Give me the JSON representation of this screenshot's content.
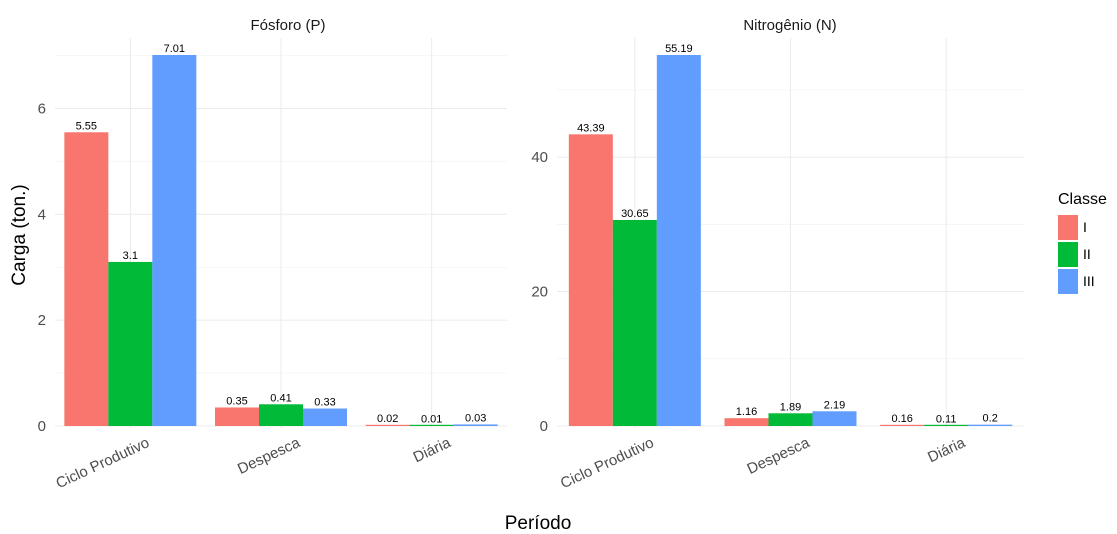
{
  "chart_data": {
    "type": "bar",
    "xlabel": "Período",
    "ylabel": "Carga (ton.)",
    "legend": {
      "title": "Classe",
      "position": "right"
    },
    "categories": [
      "Ciclo Produtivo",
      "Despesca",
      "Diária"
    ],
    "colors": {
      "I": "#F8766D",
      "II": "#00BA38",
      "III": "#619CFF"
    },
    "grid": true,
    "facets": [
      {
        "title": "Fósforo (P)",
        "ylim": [
          0,
          7.01
        ],
        "yticks": [
          0,
          2,
          4,
          6
        ],
        "series": [
          {
            "name": "I",
            "values": [
              5.55,
              0.35,
              0.02
            ],
            "labels": [
              "5.55",
              "0.35",
              "0.02"
            ]
          },
          {
            "name": "II",
            "values": [
              3.1,
              0.41,
              0.01
            ],
            "labels": [
              "3.1",
              "0.41",
              "0.01"
            ]
          },
          {
            "name": "III",
            "values": [
              7.01,
              0.33,
              0.03
            ],
            "labels": [
              "7.01",
              "0.33",
              "0.03"
            ]
          }
        ]
      },
      {
        "title": "Nitrogênio (N)",
        "ylim": [
          0,
          55.19
        ],
        "yticks": [
          0,
          20,
          40
        ],
        "series": [
          {
            "name": "I",
            "values": [
              43.39,
              1.16,
              0.16
            ],
            "labels": [
              "43.39",
              "1.16",
              "0.16"
            ]
          },
          {
            "name": "II",
            "values": [
              30.65,
              1.89,
              0.11
            ],
            "labels": [
              "30.65",
              "1.89",
              "0.11"
            ]
          },
          {
            "name": "III",
            "values": [
              55.19,
              2.19,
              0.2
            ],
            "labels": [
              "55.19",
              "2.19",
              "0.2"
            ]
          }
        ]
      }
    ]
  }
}
